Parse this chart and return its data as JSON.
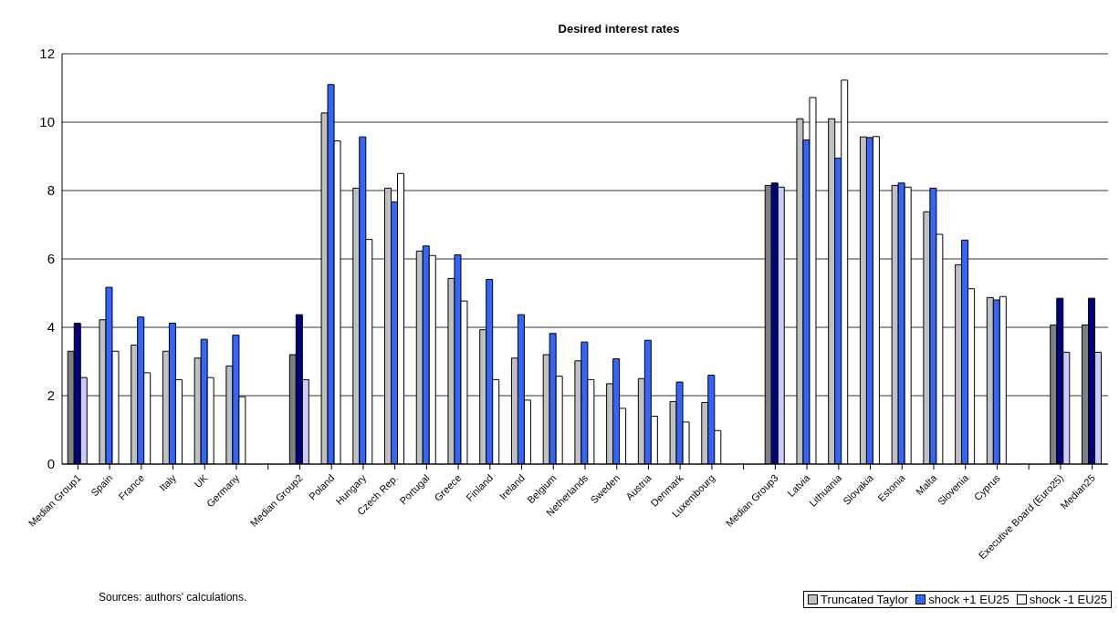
{
  "chart_data": {
    "type": "bar",
    "title": "Desired interest rates",
    "categories": [
      "Median Group1",
      "Spain",
      "France",
      "Italy",
      "UK",
      "Germany",
      null,
      "Median Group2",
      "Poland",
      "Hungary",
      "Czech Rep.",
      "Portugal",
      "Greece",
      "Finland",
      "Ireland",
      "Belgium",
      "Netherlands",
      "Sweden",
      "Austria",
      "Denmark",
      "Luxembourg",
      null,
      "Median Group3",
      "Latvia",
      "Lithuania",
      "Slovakia",
      "Estonia",
      "Malta",
      "Slovenia",
      "Cyprus",
      null,
      "Executive Board (Euro25)",
      "Median25"
    ],
    "series": [
      {
        "name": "Truncated Taylor",
        "color": "#c0c0c0",
        "colors": [
          "#808080",
          "#c0c0c0",
          "#c0c0c0",
          "#c0c0c0",
          "#c0c0c0",
          "#c0c0c0",
          "#c0c0c0",
          "#808080",
          "#c0c0c0",
          "#c0c0c0",
          "#c0c0c0",
          "#c0c0c0",
          "#c0c0c0",
          "#c0c0c0",
          "#c0c0c0",
          "#c0c0c0",
          "#c0c0c0",
          "#c0c0c0",
          "#c0c0c0",
          "#c0c0c0",
          "#c0c0c0",
          "#c0c0c0",
          "#808080",
          "#c0c0c0",
          "#c0c0c0",
          "#c0c0c0",
          "#c0c0c0",
          "#c0c0c0",
          "#c0c0c0",
          "#c0c0c0",
          "#c0c0c0",
          "#808080",
          "#808080"
        ],
        "values": [
          3.3,
          4.22,
          3.48,
          3.3,
          3.1,
          2.87,
          null,
          3.2,
          10.27,
          8.07,
          8.07,
          6.23,
          5.43,
          3.93,
          3.1,
          3.2,
          3.02,
          2.35,
          2.5,
          1.83,
          1.8,
          null,
          8.15,
          10.1,
          10.1,
          9.57,
          8.15,
          7.38,
          5.83,
          4.87,
          null,
          4.07,
          4.07
        ]
      },
      {
        "name": "shock +1 EU25",
        "color": "#3366ff",
        "colors": [
          "#000080",
          "#3366ff",
          "#3366ff",
          "#3366ff",
          "#3366ff",
          "#3366ff",
          "#3366ff",
          "#000080",
          "#3366ff",
          "#3366ff",
          "#3366ff",
          "#3366ff",
          "#3366ff",
          "#3366ff",
          "#3366ff",
          "#3366ff",
          "#3366ff",
          "#3366ff",
          "#3366ff",
          "#3366ff",
          "#3366ff",
          "#3366ff",
          "#000080",
          "#3366ff",
          "#3366ff",
          "#3366ff",
          "#3366ff",
          "#3366ff",
          "#3366ff",
          "#3366ff",
          "#3366ff",
          "#000080",
          "#000080"
        ],
        "values": [
          4.12,
          5.17,
          4.3,
          4.12,
          3.65,
          3.77,
          null,
          4.37,
          11.1,
          9.57,
          7.67,
          6.38,
          6.12,
          5.4,
          4.37,
          3.82,
          3.57,
          3.08,
          3.62,
          2.4,
          2.6,
          null,
          8.22,
          9.48,
          8.95,
          9.55,
          8.22,
          8.07,
          6.55,
          4.8,
          null,
          4.85,
          4.85
        ]
      },
      {
        "name": "shock -1 EU25",
        "color": "#ffffff",
        "colors": [
          "#ccccff",
          "#ffffff",
          "#ffffff",
          "#ffffff",
          "#ffffff",
          "#ffffff",
          "#ffffff",
          "#ccccff",
          "#ffffff",
          "#ffffff",
          "#ffffff",
          "#ffffff",
          "#ffffff",
          "#ffffff",
          "#ffffff",
          "#ffffff",
          "#ffffff",
          "#ffffff",
          "#ffffff",
          "#ffffff",
          "#ffffff",
          "#ffffff",
          "#ccccff",
          "#ffffff",
          "#ffffff",
          "#ffffff",
          "#ffffff",
          "#ffffff",
          "#ffffff",
          "#ffffff",
          "#ffffff",
          "#ccccff",
          "#ccccff"
        ],
        "values": [
          2.53,
          3.3,
          2.67,
          2.47,
          2.53,
          1.97,
          null,
          2.47,
          9.45,
          6.57,
          8.5,
          6.1,
          4.77,
          2.47,
          1.87,
          2.57,
          2.47,
          1.63,
          1.4,
          1.23,
          0.98,
          null,
          8.1,
          10.72,
          11.23,
          9.58,
          8.1,
          6.72,
          5.13,
          4.9,
          null,
          3.27,
          3.27
        ]
      }
    ],
    "ylim": [
      0,
      12
    ],
    "yticks": [
      0,
      2,
      4,
      6,
      8,
      10,
      12
    ],
    "grid": "y",
    "legend": "bottom right",
    "annotations": [
      "Sources: authors' calculations."
    ]
  }
}
